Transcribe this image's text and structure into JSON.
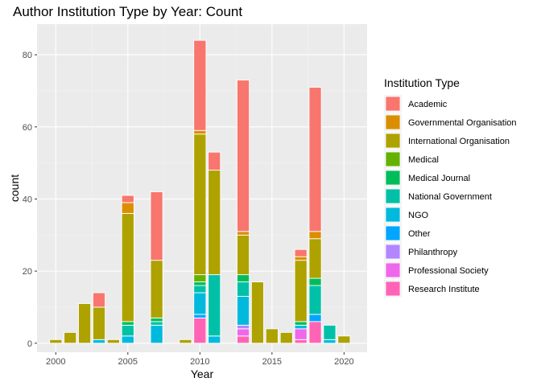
{
  "colors": {
    "panel_bg": "#ebebeb",
    "grid_major": "#ffffff",
    "grid_minor": "#f5f5f5",
    "bar_outline": "#ffffff"
  },
  "chart_data": {
    "type": "bar",
    "stacked": true,
    "title": "Author Institution Type by Year: Count",
    "xlabel": "Year",
    "ylabel": "count",
    "xlim": [
      1998.7,
      2021.6
    ],
    "ylim": [
      -2.5,
      88.5
    ],
    "x_ticks": [
      2000,
      2005,
      2010,
      2015,
      2020
    ],
    "y_ticks": [
      0,
      20,
      40,
      60,
      80
    ],
    "grid": true,
    "legend_position": "right",
    "legend_title": "Institution Type",
    "series": [
      {
        "name": "Academic",
        "color": "#F8766D"
      },
      {
        "name": "Governmental Organisation",
        "color": "#DB8E00"
      },
      {
        "name": "International Organisation",
        "color": "#AEA200"
      },
      {
        "name": "Medical",
        "color": "#64B200"
      },
      {
        "name": "Medical Journal",
        "color": "#00BD5C"
      },
      {
        "name": "National Government",
        "color": "#00C1A7"
      },
      {
        "name": "NGO",
        "color": "#00BADE"
      },
      {
        "name": "Other",
        "color": "#00A6FF"
      },
      {
        "name": "Philanthropy",
        "color": "#B385FF"
      },
      {
        "name": "Professional Society",
        "color": "#EF67EB"
      },
      {
        "name": "Research Institute",
        "color": "#FF63B6"
      }
    ],
    "bars": [
      {
        "year": 2000,
        "counts": {
          "International Organisation": 1
        }
      },
      {
        "year": 2001,
        "counts": {
          "International Organisation": 3
        }
      },
      {
        "year": 2002,
        "counts": {
          "International Organisation": 11
        }
      },
      {
        "year": 2003,
        "counts": {
          "NGO": 1,
          "International Organisation": 9,
          "Academic": 4
        }
      },
      {
        "year": 2004,
        "counts": {
          "International Organisation": 1
        }
      },
      {
        "year": 2005,
        "counts": {
          "NGO": 2,
          "National Government": 3,
          "Medical Journal": 1,
          "International Organisation": 30,
          "Governmental Organisation": 3,
          "Academic": 2
        }
      },
      {
        "year": 2007,
        "counts": {
          "NGO": 5,
          "National Government": 1,
          "Medical Journal": 1,
          "International Organisation": 16,
          "Academic": 19
        }
      },
      {
        "year": 2009,
        "counts": {
          "International Organisation": 1
        }
      },
      {
        "year": 2010,
        "counts": {
          "Research Institute": 7,
          "Other": 1,
          "NGO": 6,
          "National Government": 2,
          "Medical Journal": 1,
          "Medical": 2,
          "International Organisation": 39,
          "Governmental Organisation": 1,
          "Academic": 25
        }
      },
      {
        "year": 2011,
        "counts": {
          "NGO": 2,
          "National Government": 17,
          "International Organisation": 29,
          "Academic": 5
        }
      },
      {
        "year": 2013,
        "counts": {
          "Research Institute": 2,
          "Professional Society": 2,
          "Philanthropy": 1,
          "NGO": 8,
          "National Government": 4,
          "Medical Journal": 2,
          "International Organisation": 11,
          "Governmental Organisation": 1,
          "Academic": 42
        }
      },
      {
        "year": 2014,
        "counts": {
          "International Organisation": 17
        }
      },
      {
        "year": 2015,
        "counts": {
          "International Organisation": 4
        }
      },
      {
        "year": 2016,
        "counts": {
          "International Organisation": 3
        }
      },
      {
        "year": 2017,
        "counts": {
          "Research Institute": 1,
          "Professional Society": 3,
          "NGO": 1,
          "Medical Journal": 1,
          "International Organisation": 17,
          "Governmental Organisation": 1,
          "Academic": 2
        }
      },
      {
        "year": 2018,
        "counts": {
          "Research Institute": 6,
          "Other": 2,
          "National Government": 8,
          "Medical Journal": 2,
          "International Organisation": 11,
          "Governmental Organisation": 2,
          "Academic": 40
        }
      },
      {
        "year": 2019,
        "counts": {
          "NGO": 1,
          "National Government": 4
        }
      },
      {
        "year": 2020,
        "counts": {
          "International Organisation": 2
        }
      }
    ]
  }
}
